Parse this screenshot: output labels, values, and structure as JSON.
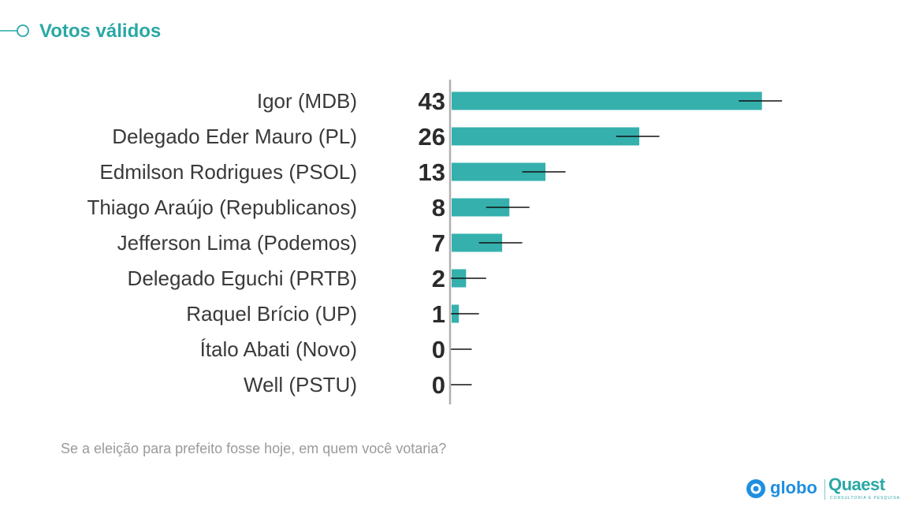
{
  "header": {
    "title": "Votos válidos"
  },
  "chart_data": {
    "type": "bar",
    "orientation": "horizontal",
    "title": "Votos válidos",
    "categories": [
      "Igor (MDB)",
      "Delegado Eder Mauro (PL)",
      "Edmilson Rodrigues (PSOL)",
      "Thiago Araújo (Republicanos)",
      "Jefferson Lima (Podemos)",
      "Delegado Eguchi (PRTB)",
      "Raquel Brício (UP)",
      "Ítalo Abati (Novo)",
      "Well (PSTU)"
    ],
    "values": [
      43,
      26,
      13,
      8,
      7,
      2,
      1,
      0,
      0
    ],
    "labels": [
      "43",
      "26",
      "13",
      "8",
      "7",
      "2",
      "1",
      "0",
      "0"
    ],
    "error_margin": 3,
    "xlim": [
      0,
      45
    ],
    "xlabel": "",
    "ylabel": "",
    "bar_color": "#35b0ad",
    "axis_color": "#b0b0b0",
    "error_color": "#111111"
  },
  "footer": {
    "question": "Se a eleição para prefeito fosse hoje, em quem você votaria?"
  },
  "logos": {
    "globo": "globo",
    "quaest": "Quaest",
    "quaest_sub": "CONSULTORIA E PESQUISA"
  }
}
